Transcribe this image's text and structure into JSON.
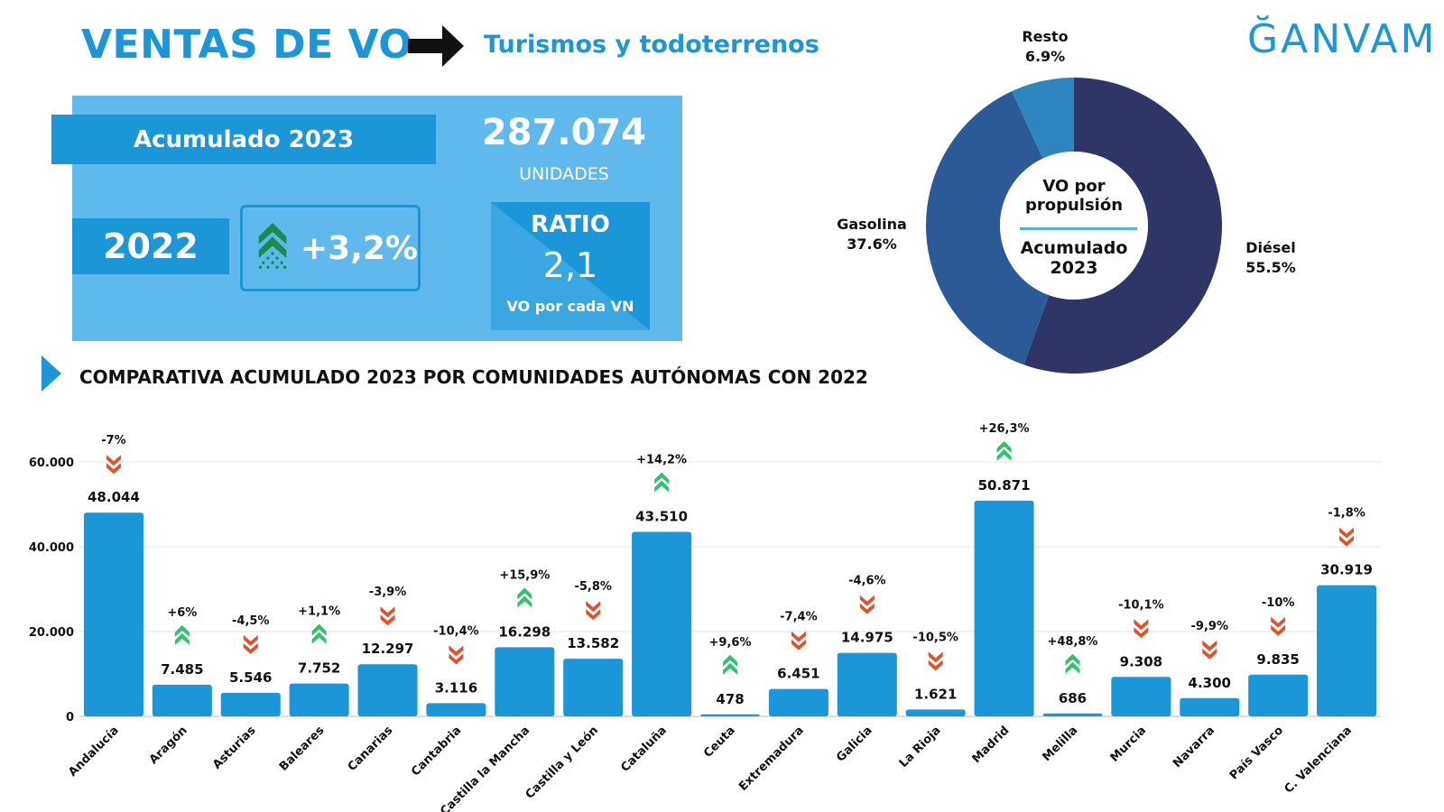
{
  "header": {
    "title": "VENTAS DE VO",
    "subtitle": "Turismos y todoterrenos",
    "logo": "ĞANVAM"
  },
  "summary": {
    "acumulado_label": "Acumulado 2023",
    "total": "287.074",
    "total_unit": "UNIDADES",
    "compare_year": "2022",
    "growth": "+3,2%",
    "ratio_title": "RATIO",
    "ratio_value": "2,1",
    "ratio_caption": "VO por cada VN"
  },
  "colors": {
    "accent": "#1b96d8",
    "panel": "#5fb9ec",
    "up": "#2fc36b",
    "down": "#e2502c",
    "diesel": "#2f3566",
    "gasolina": "#2c5a96",
    "resto": "#2f86bf"
  },
  "donut": {
    "center_top": [
      "VO por",
      "propulsión"
    ],
    "center_bottom": [
      "Acumulado",
      "2023"
    ],
    "slices": [
      {
        "name": "Diésel",
        "value": 55.5,
        "label": "55.5%"
      },
      {
        "name": "Gasolina",
        "value": 37.6,
        "label": "37.6%"
      },
      {
        "name": "Resto",
        "value": 6.9,
        "label": "6.9%"
      }
    ]
  },
  "section_title": "COMPARATIVA ACUMULADO 2023 POR COMUNIDADES AUTÓNOMAS CON 2022",
  "chart_data": {
    "type": "bar",
    "ylim": [
      0,
      60000
    ],
    "yticks": [
      0,
      20000,
      40000,
      60000
    ],
    "ytick_labels": [
      "0",
      "20.000",
      "40.000",
      "60.000"
    ],
    "grid": true,
    "categories": [
      "Andalucía",
      "Aragón",
      "Asturias",
      "Baleares",
      "Canarias",
      "Cantabria",
      "Castilla la Mancha",
      "Castilla y León",
      "Cataluña",
      "Ceuta",
      "Extremadura",
      "Galicia",
      "La Rioja",
      "Madrid",
      "Melilla",
      "Murcia",
      "Navarra",
      "País Vasco",
      "C. Valenciana"
    ],
    "values": [
      48044,
      7485,
      5546,
      7752,
      12297,
      3116,
      16298,
      13582,
      43510,
      478,
      6451,
      14975,
      1621,
      50871,
      686,
      9308,
      4300,
      9835,
      30919
    ],
    "value_labels": [
      "48.044",
      "7.485",
      "5.546",
      "7.752",
      "12.297",
      "3.116",
      "16.298",
      "13.582",
      "43.510",
      "478",
      "6.451",
      "14.975",
      "1.621",
      "50.871",
      "686",
      "9.308",
      "4.300",
      "9.835",
      "30.919"
    ],
    "change_labels": [
      "-7%",
      "+6%",
      "-4,5%",
      "+1,1%",
      "-3,9%",
      "-10,4%",
      "+15,9%",
      "-5,8%",
      "+14,2%",
      "+9,6%",
      "-7,4%",
      "-4,6%",
      "-10,5%",
      "+26,3%",
      "+48,8%",
      "-10,1%",
      "-9,9%",
      "-10%",
      "-1,8%"
    ],
    "change": [
      -7,
      6,
      -4.5,
      1.1,
      -3.9,
      -10.4,
      15.9,
      -5.8,
      14.2,
      9.6,
      -7.4,
      -4.6,
      -10.5,
      26.3,
      48.8,
      -10.1,
      -9.9,
      -10,
      -1.8
    ]
  }
}
